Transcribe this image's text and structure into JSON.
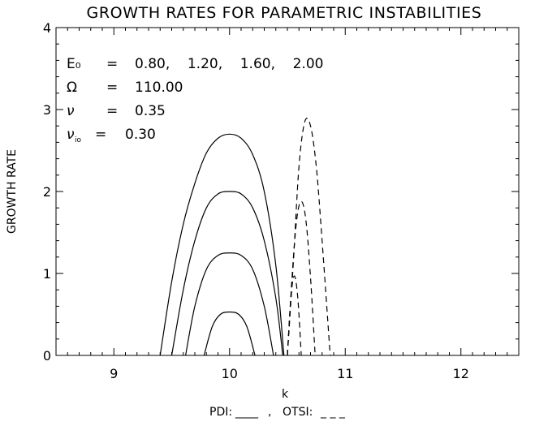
{
  "chart_data": {
    "type": "line",
    "title": "GROWTH RATES FOR PARAMETRIC INSTABILITIES",
    "xlabel": "k",
    "ylabel": "GROWTH RATE",
    "xlim": [
      8.5,
      12.5
    ],
    "ylim": [
      0,
      4
    ],
    "xticks": [
      9,
      10,
      11,
      12
    ],
    "xtick_labels": [
      "9",
      "10",
      "11",
      "12"
    ],
    "yticks": [
      0,
      1,
      2,
      3,
      4
    ],
    "ytick_labels": [
      "0",
      "1",
      "2",
      "3",
      "4"
    ],
    "grid": false,
    "annotations": [
      {
        "label": "E₀",
        "sep": "=",
        "value": "0.80,    1.20,    1.60,    2.00"
      },
      {
        "label": "Ω",
        "sep": "=",
        "value": "110.00"
      },
      {
        "label": "ν",
        "sep": "=",
        "value": "0.35"
      },
      {
        "label": "ν",
        "sub": "io",
        "sep": "=",
        "value": "0.30"
      }
    ],
    "legend_note": {
      "pdi_label": "PDI:",
      "pdi_sample": "____",
      "separator": ",",
      "otsi_label": "OTSI:",
      "otsi_sample": "_ _ _"
    },
    "series": [
      {
        "style": "solid",
        "x": [
          9.78,
          9.85,
          9.92,
          10.0,
          10.08,
          10.15,
          10.22
        ],
        "y": [
          0,
          0.35,
          0.5,
          0.53,
          0.5,
          0.35,
          0
        ]
      },
      {
        "style": "solid",
        "x": [
          9.62,
          9.7,
          9.8,
          9.9,
          10.0,
          10.1,
          10.2,
          10.3,
          10.38
        ],
        "y": [
          0,
          0.6,
          1.05,
          1.22,
          1.25,
          1.22,
          1.05,
          0.6,
          0
        ]
      },
      {
        "style": "solid",
        "x": [
          9.5,
          9.6,
          9.7,
          9.8,
          9.9,
          10.0,
          10.1,
          10.2,
          10.3,
          10.4,
          10.46
        ],
        "y": [
          0,
          0.8,
          1.4,
          1.8,
          1.97,
          2.0,
          1.97,
          1.8,
          1.4,
          0.7,
          0
        ]
      },
      {
        "style": "solid",
        "x": [
          9.4,
          9.5,
          9.6,
          9.7,
          9.8,
          9.9,
          10.0,
          10.1,
          10.2,
          10.3,
          10.4,
          10.47
        ],
        "y": [
          0,
          0.9,
          1.6,
          2.1,
          2.47,
          2.65,
          2.7,
          2.65,
          2.45,
          2.0,
          1.1,
          0
        ]
      },
      {
        "style": "dashed",
        "x": [
          10.5,
          10.53,
          10.56,
          10.59,
          10.62
        ],
        "y": [
          0,
          0.7,
          0.97,
          0.7,
          0
        ]
      },
      {
        "style": "dashed",
        "x": [
          10.5,
          10.54,
          10.58,
          10.62,
          10.66,
          10.7,
          10.74
        ],
        "y": [
          0,
          0.95,
          1.65,
          1.88,
          1.65,
          0.95,
          0
        ]
      },
      {
        "style": "dashed",
        "x": [
          10.5,
          10.55,
          10.6,
          10.65,
          10.7,
          10.75,
          10.8,
          10.87
        ],
        "y": [
          0,
          1.1,
          2.3,
          2.85,
          2.8,
          2.3,
          1.4,
          0
        ]
      }
    ]
  }
}
